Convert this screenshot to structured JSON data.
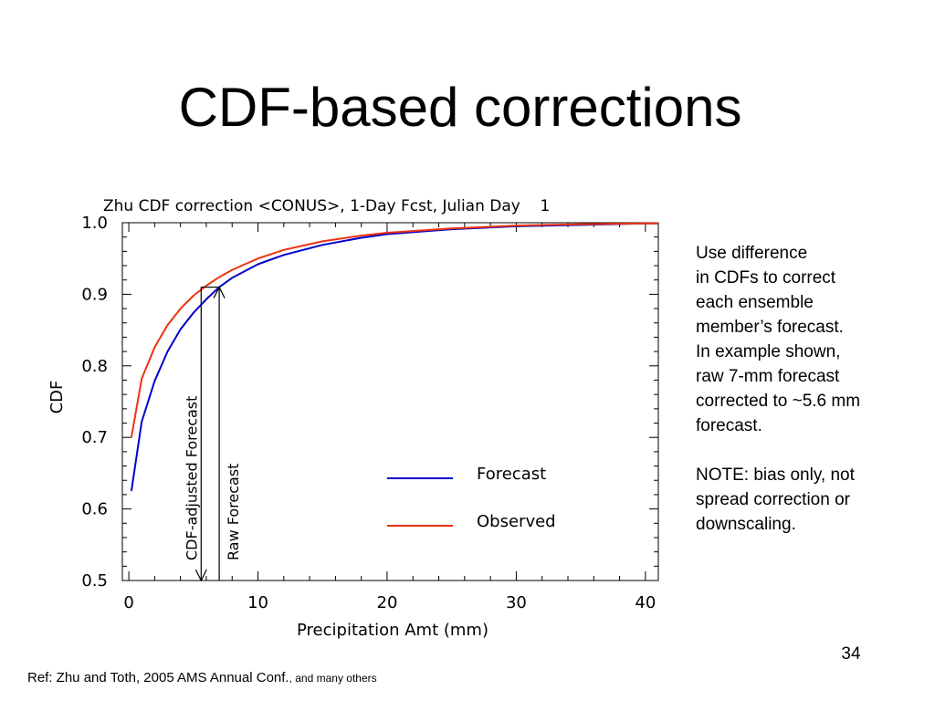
{
  "slide": {
    "title": "CDF-based corrections",
    "notes": [
      "Use difference",
      "in CDFs to correct",
      "each ensemble",
      "member’s forecast.",
      "In example shown,",
      "raw 7-mm forecast",
      "corrected to ~5.6 mm",
      "forecast."
    ],
    "note2": [
      "NOTE: bias only, not",
      "spread correction or",
      "downscaling."
    ],
    "page_number": "34",
    "reference_main": "Ref: Zhu and Toth, 2005 AMS Annual Conf.",
    "reference_small": ", and many others"
  },
  "chart_data": {
    "type": "line",
    "title": "Zhu CDF correction <CONUS>, 1-Day Fcst, Julian Day    1",
    "xlabel": "Precipitation Amt (mm)",
    "ylabel": "CDF",
    "xlim": [
      -0.5,
      41
    ],
    "ylim": [
      0.5,
      1.0
    ],
    "xticks": [
      0,
      10,
      20,
      30,
      40
    ],
    "xtick_labels": [
      "0",
      "10",
      "20",
      "30",
      "40"
    ],
    "yticks": [
      0.5,
      0.6,
      0.7,
      0.8,
      0.9,
      1.0
    ],
    "ytick_labels": [
      "0.5",
      "0.6",
      "0.7",
      "0.8",
      "0.9",
      "1.0"
    ],
    "grid": false,
    "legend_position": "lower-right",
    "series": [
      {
        "name": "Forecast",
        "color": "#0000cc",
        "x": [
          0.2,
          1,
          2,
          3,
          4,
          5,
          6,
          7,
          8,
          10,
          12,
          15,
          18,
          20,
          25,
          30,
          35,
          40,
          41
        ],
        "y": [
          0.625,
          0.722,
          0.779,
          0.82,
          0.851,
          0.874,
          0.893,
          0.91,
          0.923,
          0.942,
          0.955,
          0.969,
          0.979,
          0.984,
          0.991,
          0.995,
          0.997,
          0.999,
          0.999
        ]
      },
      {
        "name": "Observed",
        "color": "#ee3311",
        "x": [
          0.2,
          1,
          2,
          3,
          4,
          5,
          6,
          7,
          8,
          10,
          12,
          15,
          18,
          20,
          25,
          30,
          35,
          40,
          41
        ],
        "y": [
          0.7,
          0.782,
          0.826,
          0.857,
          0.88,
          0.898,
          0.912,
          0.924,
          0.934,
          0.95,
          0.962,
          0.974,
          0.982,
          0.986,
          0.992,
          0.996,
          0.998,
          0.999,
          0.999
        ]
      }
    ],
    "annotations": [
      {
        "text": "CDF-adjusted Forecast",
        "x": 5.6,
        "y": 0.91
      },
      {
        "text": "Raw Forecast",
        "x": 7,
        "y": 0.91
      }
    ]
  }
}
